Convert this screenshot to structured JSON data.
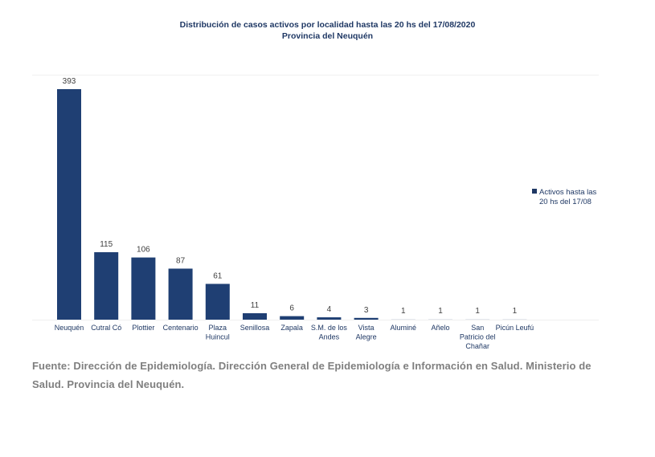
{
  "header": {
    "title_line1": "Distribución de casos activos por localidad hasta las 20 hs del  17/08/2020",
    "title_line2": "Provincia del Neuquén"
  },
  "chart_data": {
    "type": "bar",
    "title": "Distribución de casos activos por localidad hasta las 20 hs del 17/08/2020 - Provincia del Neuquén",
    "xlabel": "",
    "ylabel": "",
    "ylim": [
      0,
      400
    ],
    "grid": true,
    "legend_placement": "right",
    "categories": [
      "Neuquén",
      "Cutral Có",
      "Plottier",
      "Centenario",
      "Plaza Huincul",
      "Senillosa",
      "Zapala",
      "S.M. de los Andes",
      "Vista Alegre",
      "Aluminé",
      "Añelo",
      "San Patricio del Chañar",
      "Picún Leufú"
    ],
    "category_label_lines": [
      [
        "Neuquén"
      ],
      [
        "Cutral Có"
      ],
      [
        "Plottier"
      ],
      [
        "Centenario"
      ],
      [
        "Plaza",
        "Huincul"
      ],
      [
        "Senillosa"
      ],
      [
        "Zapala"
      ],
      [
        "S.M. de los",
        "Andes"
      ],
      [
        "Vista",
        "Alegre"
      ],
      [
        "Aluminé"
      ],
      [
        "Añelo"
      ],
      [
        "San",
        "Patricio del",
        "Chañar"
      ],
      [
        "Picún Leufú"
      ]
    ],
    "series": [
      {
        "name": "Activos hasta las 20 hs del 17/08",
        "values": [
          393,
          115,
          106,
          87,
          61,
          11,
          6,
          4,
          3,
          1,
          1,
          1,
          1
        ],
        "color": "#1f3f73"
      }
    ],
    "data_labels": [
      "393",
      "115",
      "106",
      "87",
      "61",
      "11",
      "6",
      "4",
      "3",
      "1",
      "1",
      "1",
      "1"
    ]
  },
  "legend": {
    "line1": "Activos hasta las",
    "line2": "20 hs del 17/08"
  },
  "footer": {
    "source": "Fuente: Dirección de Epidemiología. Dirección General de Epidemiología e Información en Salud. Ministerio de Salud. Provincia del Neuquén."
  },
  "colors": {
    "bar": "#1f3f73",
    "title": "#1f3864",
    "label_text": "#1f3864",
    "footer_text": "#7f7f7f",
    "gridline": "#f0f0f0"
  }
}
